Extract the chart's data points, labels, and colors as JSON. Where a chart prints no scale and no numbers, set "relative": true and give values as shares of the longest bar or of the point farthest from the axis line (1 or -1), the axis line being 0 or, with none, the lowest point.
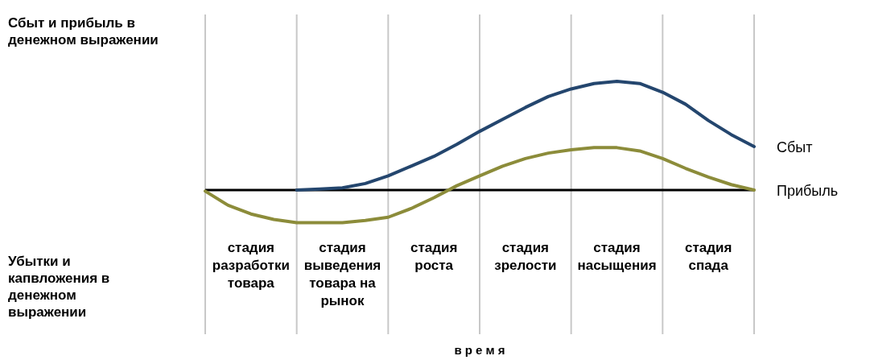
{
  "chart_data": {
    "type": "line",
    "relative": true,
    "ylabel": "Сбыт и прибыль в денежном выражении",
    "xlabel": "в р е м я",
    "annotations": [
      "Убытки и капвложения в денежном выражении"
    ],
    "categories": [
      null,
      null,
      "стадия разработки товара",
      null,
      null,
      null,
      "стадия выведения товара на рынок",
      null,
      null,
      null,
      "стадия роста",
      null,
      null,
      null,
      "стадия зрелости",
      null,
      null,
      null,
      "стадия насыщения",
      null,
      null,
      null,
      "стадия спада",
      null,
      null
    ],
    "grid": "x",
    "marker": "none",
    "line_style": "solid",
    "series": [
      {
        "name": "Сбыт",
        "color": "#24466e",
        "values": [
          null,
          null,
          null,
          null,
          0,
          0.01,
          0.02,
          0.06,
          0.13,
          0.22,
          0.31,
          0.42,
          0.54,
          0.65,
          0.76,
          0.86,
          0.93,
          0.98,
          1,
          0.98,
          0.9,
          0.79,
          0.64,
          0.51,
          0.4
        ]
      },
      {
        "name": "Прибыль",
        "color": "#8c8c3a",
        "values": [
          -0.01,
          -0.14,
          -0.22,
          -0.27,
          -0.3,
          -0.3,
          -0.3,
          -0.28,
          -0.25,
          -0.17,
          -0.07,
          0.04,
          0.13,
          0.22,
          0.29,
          0.34,
          0.37,
          0.39,
          0.39,
          0.36,
          0.29,
          0.2,
          0.12,
          0.05,
          0
        ]
      }
    ]
  }
}
